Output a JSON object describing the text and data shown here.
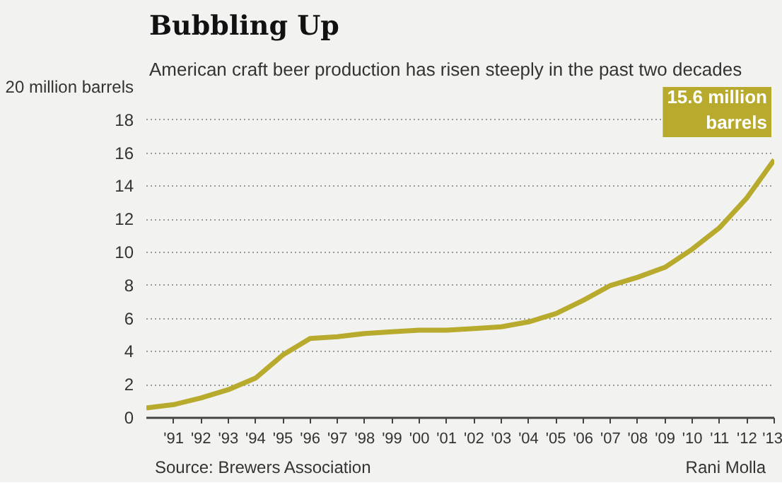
{
  "chart_data": {
    "type": "line",
    "title": "Bubbling Up",
    "subtitle": "American craft beer production has risen steeply in the past two decades",
    "x": [
      1990,
      1991,
      1992,
      1993,
      1994,
      1995,
      1996,
      1997,
      1998,
      1999,
      2000,
      2001,
      2002,
      2003,
      2004,
      2005,
      2006,
      2007,
      2008,
      2009,
      2010,
      2011,
      2012,
      2013
    ],
    "series": [
      {
        "color": "#b8aa2c",
        "values": [
          0.6,
          0.8,
          1.2,
          1.7,
          2.4,
          3.8,
          4.8,
          4.9,
          5.1,
          5.2,
          5.3,
          5.3,
          5.4,
          5.5,
          5.8,
          6.3,
          7.1,
          8.0,
          8.5,
          9.1,
          10.2,
          11.5,
          13.3,
          15.6
        ]
      }
    ],
    "xlim": [
      1990,
      2013
    ],
    "ylim": [
      0,
      20
    ],
    "xticks": [
      {
        "value": 1991,
        "label": "'91"
      },
      {
        "value": 1992,
        "label": "'92"
      },
      {
        "value": 1993,
        "label": "'93"
      },
      {
        "value": 1994,
        "label": "'94"
      },
      {
        "value": 1995,
        "label": "'95"
      },
      {
        "value": 1996,
        "label": "'96"
      },
      {
        "value": 1997,
        "label": "'97"
      },
      {
        "value": 1998,
        "label": "'98"
      },
      {
        "value": 1999,
        "label": "'99"
      },
      {
        "value": 2000,
        "label": "'00"
      },
      {
        "value": 2001,
        "label": "'01"
      },
      {
        "value": 2002,
        "label": "'02"
      },
      {
        "value": 2003,
        "label": "'03"
      },
      {
        "value": 2004,
        "label": "'04"
      },
      {
        "value": 2005,
        "label": "'05"
      },
      {
        "value": 2006,
        "label": "'06"
      },
      {
        "value": 2007,
        "label": "'07"
      },
      {
        "value": 2008,
        "label": "'08"
      },
      {
        "value": 2009,
        "label": "'09"
      },
      {
        "value": 2010,
        "label": "'10"
      },
      {
        "value": 2011,
        "label": "'11"
      },
      {
        "value": 2012,
        "label": "'12"
      },
      {
        "value": 2013,
        "label": "'13"
      }
    ],
    "yticks": [
      0,
      2,
      4,
      6,
      8,
      10,
      12,
      14,
      16,
      18,
      {
        "value": 20,
        "label": "20 million barrels"
      }
    ],
    "grid": "y",
    "marker": "none",
    "line_style": "solid",
    "annotations": [
      {
        "text": "15.6 million\nbarrels",
        "x": 2013,
        "y": 15.6
      },
      "Source: Brewers Association",
      "Rani Molla"
    ]
  }
}
